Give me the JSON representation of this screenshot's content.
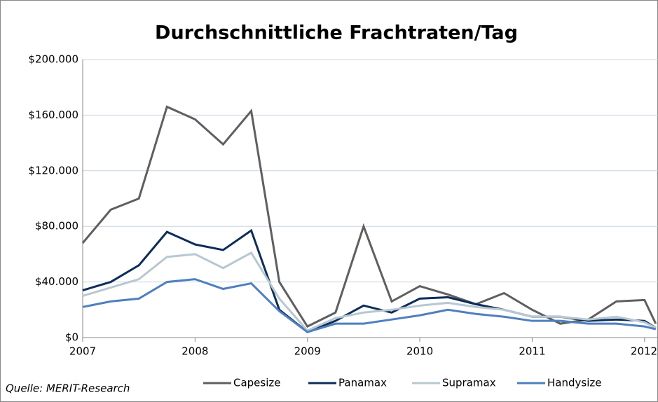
{
  "chart_data": {
    "type": "line",
    "title": "Durchschnittliche Frachtraten/Tag",
    "source": "Quelle: MERIT-Research",
    "x": [
      2007,
      2007.25,
      2007.5,
      2007.75,
      2008,
      2008.25,
      2008.5,
      2008.75,
      2009,
      2009.25,
      2009.5,
      2009.75,
      2010,
      2010.25,
      2010.5,
      2010.75,
      2011,
      2011.25,
      2011.5,
      2011.75,
      2012,
      2012.1
    ],
    "series": [
      {
        "name": "Capesize",
        "color": "#5f5f5f",
        "values": [
          68,
          92,
          100,
          166,
          157,
          139,
          163,
          40,
          8,
          18,
          80,
          26,
          37,
          31,
          24,
          32,
          20,
          10,
          13,
          26,
          27,
          10
        ]
      },
      {
        "name": "Panamax",
        "color": "#0d2d5a",
        "values": [
          34,
          40,
          52,
          76,
          67,
          63,
          77,
          20,
          4,
          12,
          23,
          18,
          28,
          29,
          24,
          20,
          15,
          15,
          12,
          13,
          12,
          7
        ]
      },
      {
        "name": "Supramax",
        "color": "#b8c8d2",
        "values": [
          30,
          36,
          42,
          58,
          60,
          50,
          61,
          28,
          5,
          14,
          18,
          20,
          23,
          25,
          22,
          20,
          15,
          15,
          13,
          15,
          11,
          7
        ]
      },
      {
        "name": "Handysize",
        "color": "#4f7fbf",
        "values": [
          22,
          26,
          28,
          40,
          42,
          35,
          39,
          19,
          4,
          10,
          10,
          13,
          16,
          20,
          17,
          15,
          12,
          12,
          10,
          10,
          8,
          6
        ]
      }
    ],
    "xlim": [
      2007,
      2012.12
    ],
    "xticks": [
      2007,
      2008,
      2009,
      2010,
      2011,
      2012
    ],
    "ylim": [
      0,
      200
    ],
    "yticks": [
      {
        "value": 0,
        "label": "$0"
      },
      {
        "value": 40,
        "label": "$40.000"
      },
      {
        "value": 80,
        "label": "$80.000"
      },
      {
        "value": 120,
        "label": "$120.000"
      },
      {
        "value": 160,
        "label": "$160.000"
      },
      {
        "value": 200,
        "label": "$200.000"
      }
    ],
    "grid": true,
    "legend": "bottom"
  }
}
